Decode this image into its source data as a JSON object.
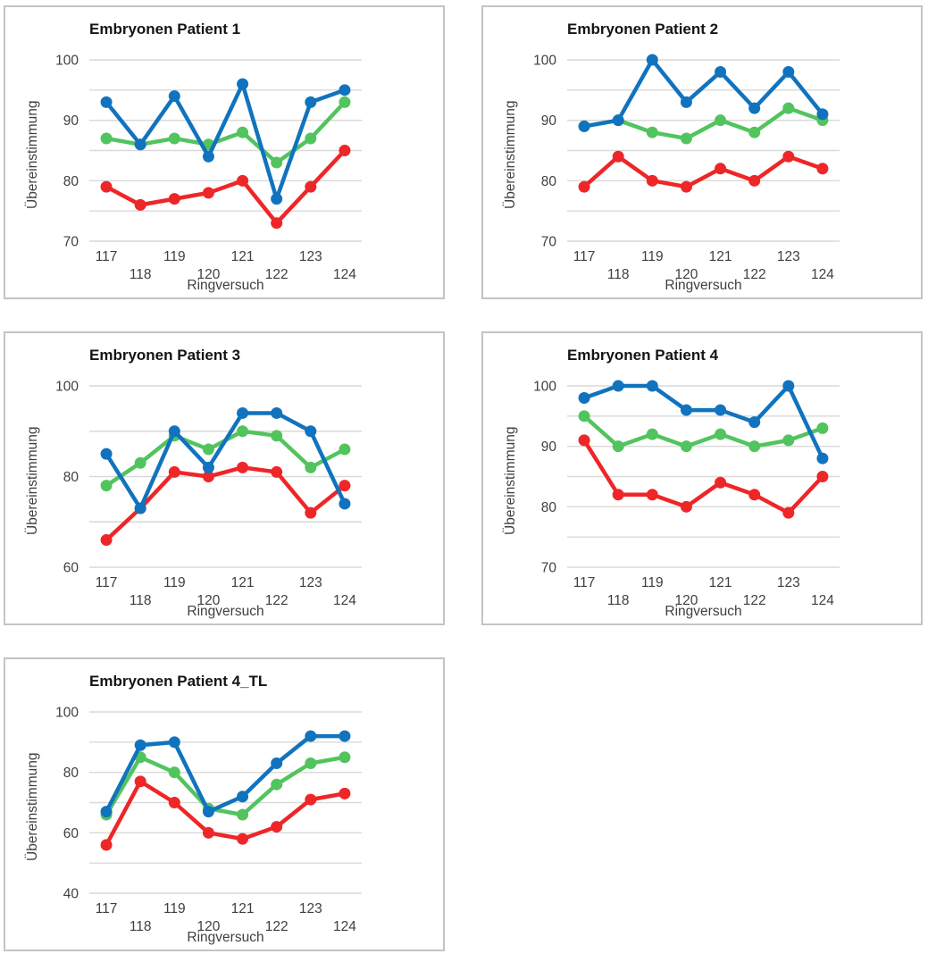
{
  "colors": {
    "background": "#ffffff",
    "panel_border": "#c4c4c4",
    "gridline": "#d9d9d9",
    "tick_text": "#3f3f3f",
    "title_text": "#141414",
    "series_blue": "#1173be",
    "series_green": "#52c45e",
    "series_red": "#ee2628"
  },
  "chart_data": [
    {
      "type": "line",
      "title": "Embryonen Patient 1",
      "xlabel": "Ringversuch",
      "ylabel": "Übereinstimmung",
      "x": [
        117,
        118,
        119,
        120,
        121,
        122,
        123,
        124
      ],
      "x_label_layout": "staggered-two-rows",
      "ylim": [
        70,
        100
      ],
      "y_grid_step": 5,
      "y_label_step": 10,
      "grid": true,
      "legend": "none",
      "series": [
        {
          "name": "red",
          "color": "#ee2628",
          "values": [
            79,
            76,
            77,
            78,
            80,
            73,
            79,
            85
          ]
        },
        {
          "name": "green",
          "color": "#52c45e",
          "values": [
            87,
            86,
            87,
            86,
            88,
            83,
            87,
            93
          ]
        },
        {
          "name": "blue",
          "color": "#1173be",
          "values": [
            93,
            86,
            94,
            84,
            96,
            77,
            93,
            95
          ]
        }
      ]
    },
    {
      "type": "line",
      "title": "Embryonen Patient 2",
      "xlabel": "Ringversuch",
      "ylabel": "Übereinstimmung",
      "x": [
        117,
        118,
        119,
        120,
        121,
        122,
        123,
        124
      ],
      "x_label_layout": "staggered-two-rows",
      "ylim": [
        70,
        100
      ],
      "y_grid_step": 5,
      "y_label_step": 10,
      "grid": true,
      "legend": "none",
      "series": [
        {
          "name": "red",
          "color": "#ee2628",
          "values": [
            79,
            84,
            80,
            79,
            82,
            80,
            84,
            82
          ]
        },
        {
          "name": "green",
          "color": "#52c45e",
          "values": [
            89,
            90,
            88,
            87,
            90,
            88,
            92,
            90
          ]
        },
        {
          "name": "blue",
          "color": "#1173be",
          "values": [
            89,
            90,
            100,
            93,
            98,
            92,
            98,
            91
          ]
        }
      ]
    },
    {
      "type": "line",
      "title": "Embryonen Patient 3",
      "xlabel": "Ringversuch",
      "ylabel": "Übereinstimmung",
      "x": [
        117,
        118,
        119,
        120,
        121,
        122,
        123,
        124
      ],
      "x_label_layout": "staggered-two-rows",
      "ylim": [
        60,
        100
      ],
      "y_grid_step": 10,
      "y_label_step": 20,
      "grid": true,
      "legend": "none",
      "series": [
        {
          "name": "red",
          "color": "#ee2628",
          "values": [
            66,
            73,
            81,
            80,
            82,
            81,
            72,
            78
          ]
        },
        {
          "name": "green",
          "color": "#52c45e",
          "values": [
            78,
            83,
            89,
            86,
            90,
            89,
            82,
            86
          ]
        },
        {
          "name": "blue",
          "color": "#1173be",
          "values": [
            85,
            73,
            90,
            82,
            94,
            94,
            90,
            74
          ]
        }
      ]
    },
    {
      "type": "line",
      "title": "Embryonen Patient 4",
      "xlabel": "Ringversuch",
      "ylabel": "Übereinstimmung",
      "x": [
        117,
        118,
        119,
        120,
        121,
        122,
        123,
        124
      ],
      "x_label_layout": "staggered-two-rows",
      "ylim": [
        70,
        100
      ],
      "y_grid_step": 5,
      "y_label_step": 10,
      "grid": true,
      "legend": "none",
      "series": [
        {
          "name": "red",
          "color": "#ee2628",
          "values": [
            91,
            82,
            82,
            80,
            84,
            82,
            79,
            85
          ]
        },
        {
          "name": "green",
          "color": "#52c45e",
          "values": [
            95,
            90,
            92,
            90,
            92,
            90,
            91,
            93
          ]
        },
        {
          "name": "blue",
          "color": "#1173be",
          "values": [
            98,
            100,
            100,
            96,
            96,
            94,
            100,
            88
          ]
        }
      ]
    },
    {
      "type": "line",
      "title": "Embryonen Patient 4_TL",
      "xlabel": "Ringversuch",
      "ylabel": "Übereinstimmung",
      "x": [
        117,
        118,
        119,
        120,
        121,
        122,
        123,
        124
      ],
      "x_label_layout": "staggered-two-rows",
      "ylim": [
        40,
        100
      ],
      "y_grid_step": 10,
      "y_label_step": 20,
      "grid": true,
      "legend": "none",
      "series": [
        {
          "name": "red",
          "color": "#ee2628",
          "values": [
            56,
            77,
            70,
            60,
            58,
            62,
            71,
            73
          ]
        },
        {
          "name": "green",
          "color": "#52c45e",
          "values": [
            66,
            85,
            80,
            68,
            66,
            76,
            83,
            85
          ]
        },
        {
          "name": "blue",
          "color": "#1173be",
          "values": [
            67,
            89,
            90,
            67,
            72,
            83,
            92,
            92
          ]
        }
      ]
    }
  ]
}
